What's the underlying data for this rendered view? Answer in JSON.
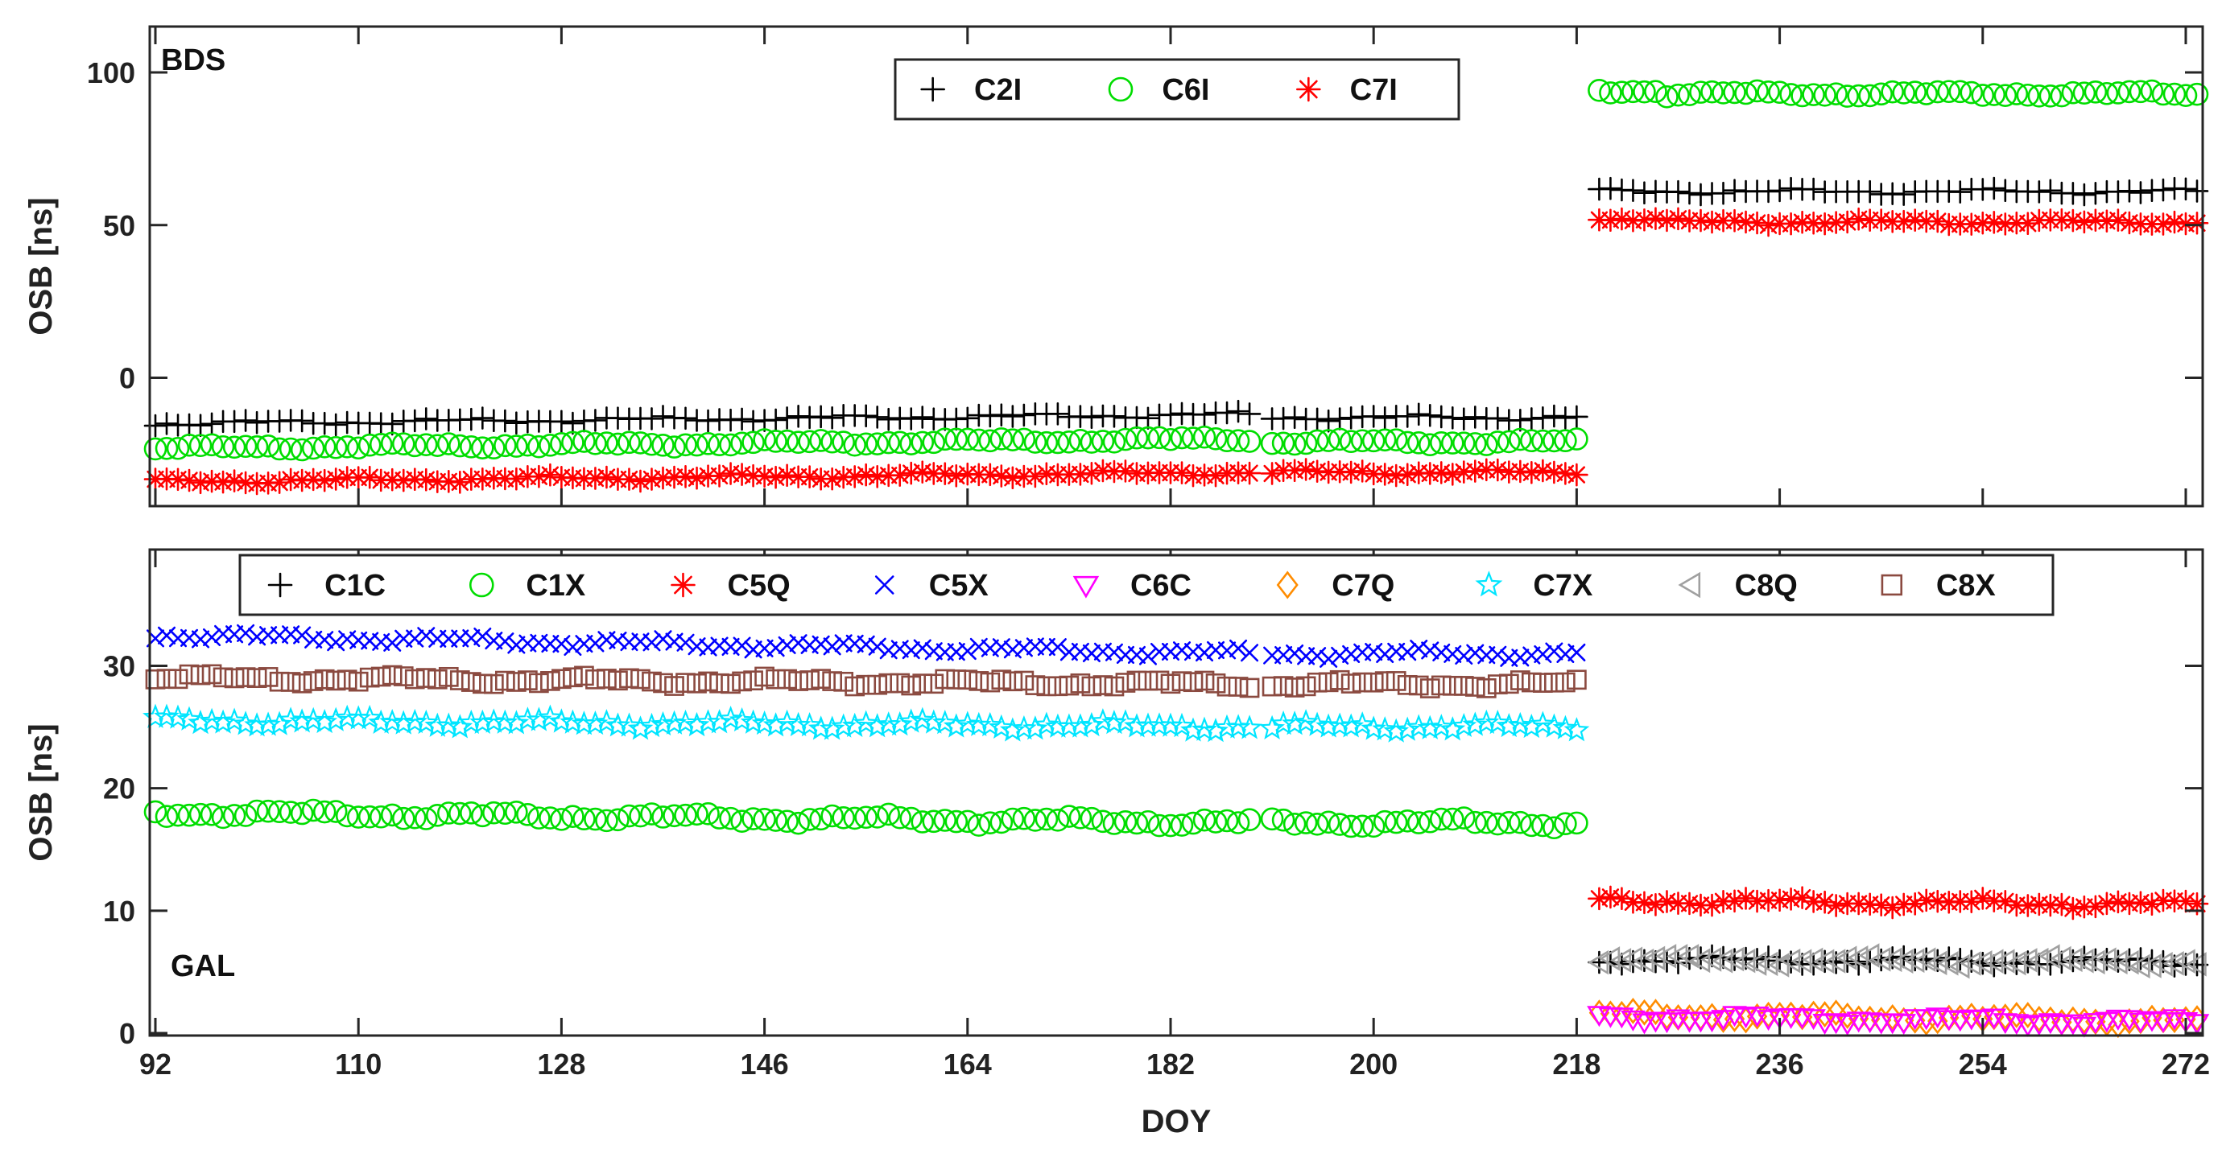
{
  "chart_data": [
    {
      "type": "scatter",
      "panel_label": "BDS",
      "title": "",
      "xlabel": "",
      "ylabel": "OSB [ns]",
      "xlim": [
        91.5,
        273.5
      ],
      "ylim": [
        -42,
        115
      ],
      "xticks": [
        92,
        110,
        128,
        146,
        164,
        182,
        200,
        218,
        236,
        254,
        272
      ],
      "xtick_labels": [],
      "yticks": [
        0,
        50,
        100
      ],
      "ytick_labels": [
        "0",
        "50",
        "100"
      ],
      "legend": [
        {
          "label": "C2I",
          "color": "#000000",
          "marker": "plus"
        },
        {
          "label": "C6I",
          "color": "#00dd00",
          "marker": "circle"
        },
        {
          "label": "C7I",
          "color": "#ff0000",
          "marker": "asterisk"
        }
      ],
      "x_segments": [
        [
          92,
          189
        ],
        [
          191,
          218
        ],
        [
          220,
          225
        ],
        [
          226,
          273
        ]
      ],
      "series": [
        {
          "name": "C2I",
          "segment_values": [
            [
              -15,
              -12
            ],
            [
              -13,
              -13
            ],
            [
              61,
              61
            ],
            [
              61,
              61
            ]
          ]
        },
        {
          "name": "C6I",
          "segment_values": [
            [
              -23,
              -20
            ],
            [
              -21,
              -21
            ],
            [
              94,
              94
            ],
            [
              93,
              93
            ]
          ]
        },
        {
          "name": "C7I",
          "segment_values": [
            [
              -34,
              -31
            ],
            [
              -31,
              -31
            ],
            [
              52,
              52
            ],
            [
              51,
              51
            ]
          ]
        }
      ]
    },
    {
      "type": "scatter",
      "panel_label": "GAL",
      "title": "",
      "xlabel": "DOY",
      "ylabel": "OSB [ns]",
      "xlim": [
        91.5,
        273.5
      ],
      "ylim": [
        -0.2,
        39.5
      ],
      "xticks": [
        92,
        110,
        128,
        146,
        164,
        182,
        200,
        218,
        236,
        254,
        272
      ],
      "xtick_labels": [
        "92",
        "110",
        "128",
        "146",
        "164",
        "182",
        "200",
        "218",
        "236",
        "254",
        "272"
      ],
      "yticks": [
        0,
        10,
        20,
        30
      ],
      "ytick_labels": [
        "0",
        "10",
        "20",
        "30"
      ],
      "legend": [
        {
          "label": "C1C",
          "color": "#000000",
          "marker": "plus"
        },
        {
          "label": "C1X",
          "color": "#00dd00",
          "marker": "circle"
        },
        {
          "label": "C5Q",
          "color": "#ff0000",
          "marker": "asterisk"
        },
        {
          "label": "C5X",
          "color": "#0000ff",
          "marker": "cross"
        },
        {
          "label": "C6C",
          "color": "#ff00ff",
          "marker": "triangle-down"
        },
        {
          "label": "C7Q",
          "color": "#ff8c00",
          "marker": "diamond"
        },
        {
          "label": "C7X",
          "color": "#00e5ff",
          "marker": "pentagram"
        },
        {
          "label": "C8Q",
          "color": "#a0a0a0",
          "marker": "triangle-left"
        },
        {
          "label": "C8X",
          "color": "#8b4a40",
          "marker": "square"
        }
      ],
      "x_segments": [
        [
          92,
          189
        ],
        [
          191,
          218
        ],
        [
          220,
          273
        ]
      ],
      "series": [
        {
          "name": "C5X",
          "segment_values": [
            [
              32.5,
              31
            ],
            [
              31,
              31
            ],
            null
          ]
        },
        {
          "name": "C8X",
          "segment_values": [
            [
              29,
              28.5
            ],
            [
              28.5,
              28.5
            ],
            null
          ]
        },
        {
          "name": "C7X",
          "segment_values": [
            [
              25.5,
              25
            ],
            [
              25,
              25
            ],
            null
          ]
        },
        {
          "name": "C1X",
          "segment_values": [
            [
              18,
              17.2
            ],
            [
              17.2,
              17.2
            ],
            null
          ]
        },
        {
          "name": "C5Q",
          "segment_values": [
            null,
            null,
            [
              10.8,
              10.5
            ]
          ]
        },
        {
          "name": "C1C",
          "segment_values": [
            null,
            null,
            [
              6,
              5.8
            ]
          ]
        },
        {
          "name": "C8Q",
          "segment_values": [
            null,
            null,
            [
              6,
              5.8
            ]
          ]
        },
        {
          "name": "C7Q",
          "segment_values": [
            null,
            null,
            [
              1.5,
              1
            ]
          ]
        },
        {
          "name": "C6C",
          "segment_values": [
            null,
            null,
            [
              1.3,
              0.9
            ]
          ]
        }
      ]
    }
  ]
}
